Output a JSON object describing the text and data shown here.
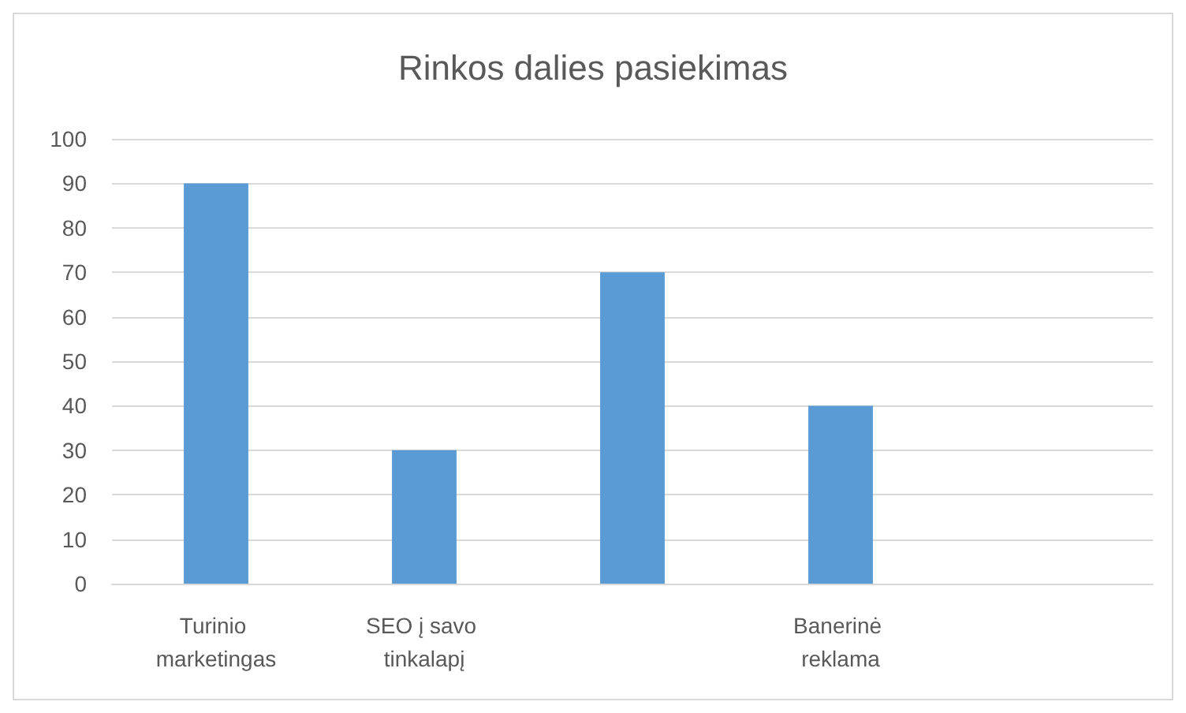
{
  "chart_data": {
    "type": "bar",
    "title": "Rinkos dalies pasiekimas",
    "categories": [
      "Turinio marketingas",
      "SEO į savo tinkalapį",
      null,
      "Banerinė reklama",
      null
    ],
    "values": [
      90,
      30,
      70,
      40,
      null
    ],
    "color": "#5b9bd5",
    "ylim": [
      0,
      100
    ],
    "yticks": [
      0,
      10,
      20,
      30,
      40,
      50,
      60,
      70,
      80,
      90,
      100
    ],
    "grid": "y"
  }
}
